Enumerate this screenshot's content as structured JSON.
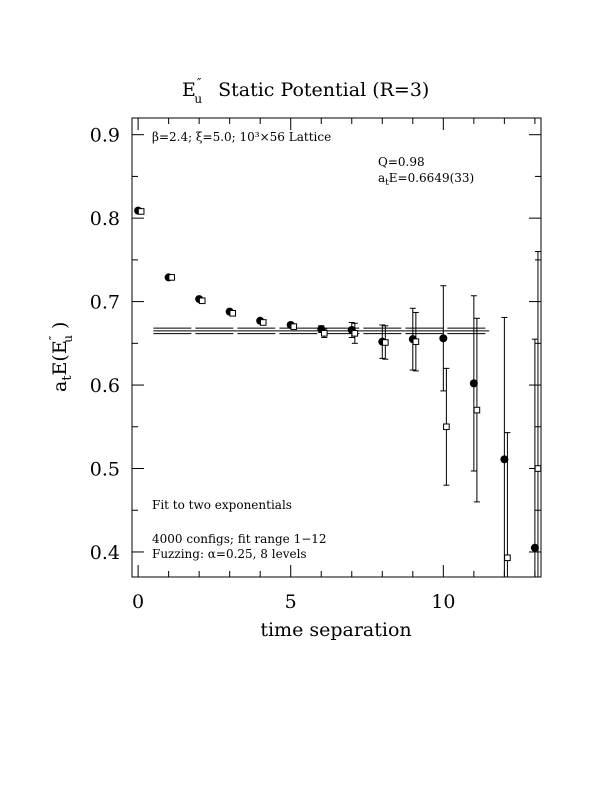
{
  "chart_data": {
    "type": "scatter",
    "title_main": "E",
    "title_sup": "″",
    "title_sub": "u",
    "title_rest": "Static Potential (R=3)",
    "xlabel": "time separation",
    "ylabel_a": "a",
    "ylabel_t": "t",
    "ylabel_E": "E(E",
    "ylabel_sup": "″",
    "ylabel_sub": "u",
    "ylabel_close": " )",
    "xlim": [
      -0.2,
      13.2
    ],
    "ylim": [
      0.37,
      0.92
    ],
    "x_ticks": [
      0,
      5,
      10
    ],
    "y_ticks": [
      0.4,
      0.5,
      0.6,
      0.7,
      0.8,
      0.9
    ],
    "x_tick_labels": [
      "0",
      "5",
      "10"
    ],
    "y_tick_labels": [
      "0.4",
      "0.5",
      "0.6",
      "0.7",
      "0.8",
      "0.9"
    ],
    "annotations": {
      "lattice": "β=2.4; ξ=5.0; 10³×56 Lattice",
      "q": "Q=0.98",
      "fit_a": "a",
      "fit_t": "t",
      "fit_val": "E=0.6649(33)",
      "fit_method": "Fit to two exponentials",
      "configs": "4000 configs; fit range 1−12",
      "fuzzing": "Fuzzing: α=0.25, 8 levels"
    },
    "fit": {
      "value": 0.6649,
      "error": 0.0033,
      "x_range": [
        0.5,
        11.5
      ]
    },
    "series": [
      {
        "marker": "filled-circle",
        "x": [
          0,
          1,
          2,
          3,
          4,
          5,
          6,
          7,
          8,
          9,
          10,
          11,
          12,
          13
        ],
        "y": [
          0.809,
          0.729,
          0.703,
          0.688,
          0.677,
          0.672,
          0.667,
          0.666,
          0.652,
          0.655,
          0.656,
          0.602,
          0.511,
          0.405
        ],
        "err": [
          0.001,
          0.001,
          0.001,
          0.002,
          0.002,
          0.003,
          0.004,
          0.009,
          0.02,
          0.037,
          0.063,
          0.105,
          0.17,
          0.25
        ]
      },
      {
        "marker": "open-square",
        "x": [
          0.1,
          1.1,
          2.1,
          3.1,
          4.1,
          5.1,
          6.1,
          7.1,
          8.1,
          9.1,
          10.1,
          11.1,
          12.1,
          13.1
        ],
        "y": [
          0.808,
          0.729,
          0.701,
          0.686,
          0.675,
          0.67,
          0.662,
          0.662,
          0.651,
          0.652,
          0.55,
          0.57,
          0.393,
          0.5
        ],
        "err": [
          0.001,
          0.001,
          0.001,
          0.002,
          0.002,
          0.003,
          0.005,
          0.012,
          0.02,
          0.035,
          0.07,
          0.11,
          0.15,
          0.26
        ]
      }
    ]
  }
}
